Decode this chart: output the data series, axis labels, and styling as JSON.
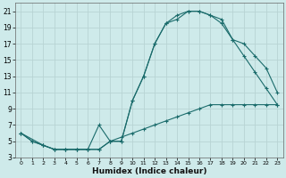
{
  "title": "",
  "xlabel": "Humidex (Indice chaleur)",
  "bg_color": "#ceeaea",
  "grid_color": "#b8d4d4",
  "line_color": "#1a6b6b",
  "xlim": [
    -0.5,
    23.5
  ],
  "ylim": [
    3,
    22
  ],
  "xticks": [
    0,
    1,
    2,
    3,
    4,
    5,
    6,
    7,
    8,
    9,
    10,
    11,
    12,
    13,
    14,
    15,
    16,
    17,
    18,
    19,
    20,
    21,
    22,
    23
  ],
  "yticks": [
    3,
    5,
    7,
    9,
    11,
    13,
    15,
    17,
    19,
    21
  ],
  "line1_x": [
    0,
    1,
    2,
    3,
    4,
    5,
    6,
    7,
    8,
    9,
    10,
    11,
    12,
    13,
    14,
    15,
    16,
    17,
    18,
    19,
    20,
    21,
    22,
    23
  ],
  "line1_y": [
    6,
    5,
    4.5,
    4,
    4,
    4,
    4,
    4,
    5,
    5.5,
    6,
    6.5,
    7,
    7.5,
    8,
    8.5,
    9,
    9.5,
    9.5,
    9.5,
    9.5,
    9.5,
    9.5,
    9.5
  ],
  "line2_x": [
    0,
    1,
    2,
    3,
    4,
    5,
    6,
    7,
    8,
    9,
    10,
    11,
    12,
    13,
    14,
    15,
    16,
    17,
    18,
    19,
    20,
    21,
    22,
    23
  ],
  "line2_y": [
    6,
    5,
    4.5,
    4,
    4,
    4,
    4,
    7,
    5,
    5,
    10,
    13,
    17,
    19.5,
    20,
    21,
    21,
    20.5,
    19.5,
    17.5,
    17,
    15.5,
    14,
    11
  ],
  "line3_x": [
    0,
    2,
    3,
    4,
    5,
    6,
    7,
    8,
    9,
    10,
    11,
    12,
    13,
    14,
    15,
    16,
    17,
    18,
    19,
    20,
    21,
    22,
    23
  ],
  "line3_y": [
    6,
    4.5,
    4,
    4,
    4,
    4,
    4,
    5,
    5,
    10,
    13,
    17,
    19.5,
    20.5,
    21,
    21,
    20.5,
    20,
    17.5,
    15.5,
    13.5,
    11.5,
    9.5
  ]
}
